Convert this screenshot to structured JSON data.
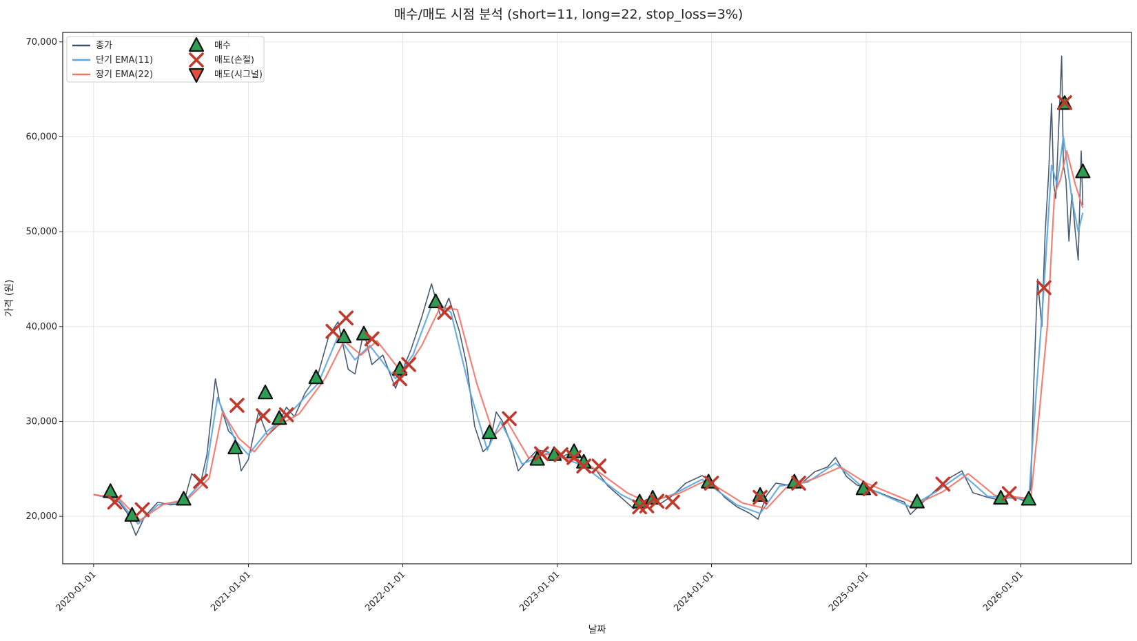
{
  "chart_data": {
    "type": "line",
    "title": "매수/매도 시점 분석 (short=11, long=22, stop_loss=3%)",
    "xlabel": "날짜",
    "ylabel": "가격 (원)",
    "xlim": [
      "2019-10-20",
      "2026-09-20"
    ],
    "ylim": [
      15000,
      71000
    ],
    "grid": true,
    "legend_position": "top-left",
    "x_ticks": [
      "2020-01-01",
      "2021-01-01",
      "2022-01-01",
      "2023-01-01",
      "2024-01-01",
      "2025-01-01",
      "2026-01-01"
    ],
    "y_ticks": [
      20000,
      30000,
      40000,
      50000,
      60000,
      70000
    ],
    "y_tick_labels": [
      "20,000",
      "30,000",
      "40,000",
      "50,000",
      "60,000",
      "70,000"
    ],
    "series": [
      {
        "name": "종가",
        "color": "#3d5168",
        "points": [
          [
            "2020-01-01",
            22300
          ],
          [
            "2020-02-01",
            22000
          ],
          [
            "2020-03-01",
            21500
          ],
          [
            "2020-03-20",
            20400
          ],
          [
            "2020-04-10",
            18000
          ],
          [
            "2020-05-01",
            20000
          ],
          [
            "2020-06-01",
            21500
          ],
          [
            "2020-07-01",
            21200
          ],
          [
            "2020-08-01",
            21400
          ],
          [
            "2020-08-20",
            24500
          ],
          [
            "2020-09-10",
            23500
          ],
          [
            "2020-09-25",
            26500
          ],
          [
            "2020-10-15",
            34500
          ],
          [
            "2020-10-25",
            32000
          ],
          [
            "2020-11-15",
            29000
          ],
          [
            "2020-12-01",
            28300
          ],
          [
            "2020-12-15",
            24800
          ],
          [
            "2021-01-01",
            26000
          ],
          [
            "2021-01-25",
            31000
          ],
          [
            "2021-02-15",
            28500
          ],
          [
            "2021-03-10",
            29500
          ],
          [
            "2021-04-01",
            31500
          ],
          [
            "2021-04-20",
            30500
          ],
          [
            "2021-05-15",
            33000
          ],
          [
            "2021-06-15",
            35000
          ],
          [
            "2021-07-10",
            39000
          ],
          [
            "2021-08-01",
            40500
          ],
          [
            "2021-08-25",
            35500
          ],
          [
            "2021-09-10",
            35000
          ],
          [
            "2021-10-01",
            39500
          ],
          [
            "2021-10-20",
            36000
          ],
          [
            "2021-11-15",
            37000
          ],
          [
            "2021-12-15",
            33500
          ],
          [
            "2022-01-01",
            35500
          ],
          [
            "2022-01-20",
            37500
          ],
          [
            "2022-02-15",
            41000
          ],
          [
            "2022-03-10",
            44500
          ],
          [
            "2022-04-01",
            41000
          ],
          [
            "2022-04-20",
            43000
          ],
          [
            "2022-05-15",
            39500
          ],
          [
            "2022-06-01",
            36000
          ],
          [
            "2022-06-20",
            29500
          ],
          [
            "2022-07-10",
            26800
          ],
          [
            "2022-07-25",
            27500
          ],
          [
            "2022-08-10",
            31000
          ],
          [
            "2022-08-25",
            30000
          ],
          [
            "2022-09-15",
            27500
          ],
          [
            "2022-10-01",
            24800
          ],
          [
            "2022-10-20",
            25800
          ],
          [
            "2022-11-15",
            27000
          ],
          [
            "2022-12-10",
            26800
          ],
          [
            "2023-01-01",
            26000
          ],
          [
            "2023-02-01",
            26700
          ],
          [
            "2023-03-01",
            25200
          ],
          [
            "2023-04-01",
            25000
          ],
          [
            "2023-05-01",
            23200
          ],
          [
            "2023-06-01",
            22000
          ],
          [
            "2023-07-01",
            20800
          ],
          [
            "2023-08-01",
            21800
          ],
          [
            "2023-09-01",
            21300
          ],
          [
            "2023-10-01",
            22200
          ],
          [
            "2023-11-01",
            23500
          ],
          [
            "2023-12-10",
            24300
          ],
          [
            "2024-01-01",
            23600
          ],
          [
            "2024-02-01",
            22000
          ],
          [
            "2024-03-01",
            21000
          ],
          [
            "2024-04-01",
            20300
          ],
          [
            "2024-04-20",
            19700
          ],
          [
            "2024-05-10",
            22200
          ],
          [
            "2024-06-01",
            23500
          ],
          [
            "2024-07-01",
            23300
          ],
          [
            "2024-08-01",
            23500
          ],
          [
            "2024-09-01",
            24700
          ],
          [
            "2024-10-01",
            25200
          ],
          [
            "2024-10-20",
            26200
          ],
          [
            "2024-11-15",
            24200
          ],
          [
            "2024-12-10",
            23300
          ],
          [
            "2025-01-01",
            23000
          ],
          [
            "2025-02-01",
            22500
          ],
          [
            "2025-03-01",
            22000
          ],
          [
            "2025-04-01",
            21500
          ],
          [
            "2025-04-15",
            20200
          ],
          [
            "2025-05-15",
            21500
          ],
          [
            "2025-06-15",
            22800
          ],
          [
            "2025-07-15",
            24000
          ],
          [
            "2025-08-15",
            24800
          ],
          [
            "2025-09-10",
            22500
          ],
          [
            "2025-10-15",
            22000
          ],
          [
            "2025-11-15",
            21700
          ],
          [
            "2025-12-15",
            22100
          ],
          [
            "2026-01-15",
            21500
          ],
          [
            "2026-01-25",
            23000
          ],
          [
            "2026-02-01",
            34000
          ],
          [
            "2026-02-10",
            45000
          ],
          [
            "2026-02-20",
            40000
          ],
          [
            "2026-02-28",
            50000
          ],
          [
            "2026-03-08",
            56000
          ],
          [
            "2026-03-15",
            63500
          ],
          [
            "2026-03-20",
            55000
          ],
          [
            "2026-03-25",
            53500
          ],
          [
            "2026-04-01",
            61000
          ],
          [
            "2026-04-08",
            68500
          ],
          [
            "2026-04-12",
            57000
          ],
          [
            "2026-04-18",
            55500
          ],
          [
            "2026-04-25",
            49000
          ],
          [
            "2026-05-02",
            54000
          ],
          [
            "2026-05-10",
            50000
          ],
          [
            "2026-05-17",
            47000
          ],
          [
            "2026-05-24",
            58500
          ],
          [
            "2026-05-28",
            52800
          ]
        ]
      },
      {
        "name": "단기 EMA(11)",
        "color": "#5da5dc",
        "points": [
          [
            "2020-01-01",
            22300
          ],
          [
            "2020-03-01",
            21700
          ],
          [
            "2020-04-15",
            19200
          ],
          [
            "2020-06-01",
            21200
          ],
          [
            "2020-08-01",
            21500
          ],
          [
            "2020-09-20",
            24000
          ],
          [
            "2020-10-20",
            32500
          ],
          [
            "2020-12-01",
            28000
          ],
          [
            "2021-01-01",
            26500
          ],
          [
            "2021-02-15",
            29000
          ],
          [
            "2021-04-01",
            30500
          ],
          [
            "2021-06-15",
            34000
          ],
          [
            "2021-08-01",
            39000
          ],
          [
            "2021-09-10",
            36500
          ],
          [
            "2021-10-15",
            38000
          ],
          [
            "2021-12-15",
            34500
          ],
          [
            "2022-01-25",
            37000
          ],
          [
            "2022-03-15",
            42800
          ],
          [
            "2022-04-25",
            41500
          ],
          [
            "2022-06-10",
            33000
          ],
          [
            "2022-07-20",
            27000
          ],
          [
            "2022-08-20",
            30000
          ],
          [
            "2022-10-10",
            25500
          ],
          [
            "2022-12-10",
            26700
          ],
          [
            "2023-03-01",
            25400
          ],
          [
            "2023-06-01",
            22300
          ],
          [
            "2023-07-20",
            21200
          ],
          [
            "2023-10-01",
            22300
          ],
          [
            "2023-12-10",
            23900
          ],
          [
            "2024-03-01",
            21200
          ],
          [
            "2024-04-25",
            20300
          ],
          [
            "2024-06-10",
            23200
          ],
          [
            "2024-08-15",
            23600
          ],
          [
            "2024-10-20",
            25600
          ],
          [
            "2024-12-15",
            23400
          ],
          [
            "2025-04-15",
            21000
          ],
          [
            "2025-06-15",
            22600
          ],
          [
            "2025-08-15",
            24500
          ],
          [
            "2025-10-15",
            22100
          ],
          [
            "2026-01-20",
            21800
          ],
          [
            "2026-02-05",
            32000
          ],
          [
            "2026-02-25",
            44000
          ],
          [
            "2026-03-15",
            57000
          ],
          [
            "2026-03-28",
            55000
          ],
          [
            "2026-04-12",
            60000
          ],
          [
            "2026-05-02",
            53500
          ],
          [
            "2026-05-17",
            50000
          ],
          [
            "2026-05-28",
            52000
          ]
        ]
      },
      {
        "name": "장기 EMA(22)",
        "color": "#ef7467",
        "points": [
          [
            "2020-01-01",
            22300
          ],
          [
            "2020-03-01",
            21900
          ],
          [
            "2020-04-20",
            19600
          ],
          [
            "2020-06-15",
            21300
          ],
          [
            "2020-08-10",
            21800
          ],
          [
            "2020-09-30",
            24000
          ],
          [
            "2020-11-01",
            31000
          ],
          [
            "2020-12-10",
            28200
          ],
          [
            "2021-01-15",
            26800
          ],
          [
            "2021-03-01",
            29300
          ],
          [
            "2021-05-01",
            30800
          ],
          [
            "2021-07-01",
            34500
          ],
          [
            "2021-08-15",
            38500
          ],
          [
            "2021-09-25",
            37000
          ],
          [
            "2021-11-01",
            38500
          ],
          [
            "2022-01-01",
            35000
          ],
          [
            "2022-02-15",
            38000
          ],
          [
            "2022-03-30",
            42000
          ],
          [
            "2022-05-10",
            41800
          ],
          [
            "2022-06-25",
            34000
          ],
          [
            "2022-08-05",
            28500
          ],
          [
            "2022-09-05",
            30000
          ],
          [
            "2022-10-25",
            26200
          ],
          [
            "2022-12-20",
            26600
          ],
          [
            "2023-03-15",
            25500
          ],
          [
            "2023-06-15",
            22500
          ],
          [
            "2023-08-01",
            21500
          ],
          [
            "2023-10-15",
            22400
          ],
          [
            "2023-12-20",
            23800
          ],
          [
            "2024-03-15",
            21400
          ],
          [
            "2024-05-10",
            20800
          ],
          [
            "2024-06-25",
            23000
          ],
          [
            "2024-09-01",
            24000
          ],
          [
            "2024-11-01",
            25200
          ],
          [
            "2025-01-01",
            23500
          ],
          [
            "2025-04-30",
            21300
          ],
          [
            "2025-07-01",
            22600
          ],
          [
            "2025-08-30",
            24500
          ],
          [
            "2025-11-01",
            22200
          ],
          [
            "2026-01-25",
            21900
          ],
          [
            "2026-02-12",
            30000
          ],
          [
            "2026-03-05",
            40000
          ],
          [
            "2026-03-22",
            54000
          ],
          [
            "2026-04-05",
            55500
          ],
          [
            "2026-04-20",
            58500
          ],
          [
            "2026-05-10",
            55000
          ],
          [
            "2026-05-28",
            52500
          ]
        ]
      }
    ],
    "markers": [
      {
        "name": "매수",
        "shape": "triangle-up",
        "color": "#2e9e55",
        "points": [
          [
            "2020-02-10",
            22600
          ],
          [
            "2020-04-01",
            20100
          ],
          [
            "2020-08-01",
            21800
          ],
          [
            "2020-12-01",
            27200
          ],
          [
            "2021-02-10",
            33000
          ],
          [
            "2021-03-15",
            30300
          ],
          [
            "2021-06-10",
            34600
          ],
          [
            "2021-08-15",
            38900
          ],
          [
            "2021-10-01",
            39200
          ],
          [
            "2021-12-25",
            35500
          ],
          [
            "2022-03-20",
            42600
          ],
          [
            "2022-07-25",
            28800
          ],
          [
            "2022-11-15",
            26000
          ],
          [
            "2022-12-25",
            26500
          ],
          [
            "2023-02-10",
            26800
          ],
          [
            "2023-03-05",
            25700
          ],
          [
            "2023-07-15",
            21500
          ],
          [
            "2023-08-15",
            21900
          ],
          [
            "2023-12-25",
            23600
          ],
          [
            "2024-04-25",
            22200
          ],
          [
            "2024-07-15",
            23600
          ],
          [
            "2024-12-25",
            22900
          ],
          [
            "2025-05-01",
            21500
          ],
          [
            "2025-11-15",
            21900
          ],
          [
            "2026-01-20",
            21800
          ],
          [
            "2026-04-15",
            63500
          ],
          [
            "2026-05-28",
            56300
          ]
        ]
      },
      {
        "name": "매도(손절)",
        "shape": "x",
        "color": "#c0392b",
        "points": [
          [
            "2020-02-20",
            21500
          ],
          [
            "2020-04-25",
            20700
          ],
          [
            "2020-09-10",
            23700
          ],
          [
            "2020-12-05",
            31700
          ],
          [
            "2021-02-05",
            30600
          ],
          [
            "2021-04-01",
            30700
          ],
          [
            "2021-07-20",
            39500
          ],
          [
            "2021-08-20",
            40900
          ],
          [
            "2021-10-20",
            38700
          ],
          [
            "2021-12-25",
            34500
          ],
          [
            "2022-01-15",
            36000
          ],
          [
            "2022-04-10",
            41500
          ],
          [
            "2022-09-10",
            30300
          ],
          [
            "2022-11-25",
            26600
          ],
          [
            "2023-01-10",
            26500
          ],
          [
            "2023-02-10",
            26200
          ],
          [
            "2023-03-05",
            25300
          ],
          [
            "2023-04-10",
            25300
          ],
          [
            "2023-07-15",
            21000
          ],
          [
            "2023-08-01",
            21100
          ],
          [
            "2023-08-25",
            21600
          ],
          [
            "2023-10-01",
            21500
          ],
          [
            "2024-01-01",
            23500
          ],
          [
            "2024-04-25",
            22000
          ],
          [
            "2024-07-25",
            23500
          ],
          [
            "2025-01-10",
            22900
          ],
          [
            "2025-07-01",
            23400
          ],
          [
            "2025-12-05",
            22400
          ],
          [
            "2026-02-25",
            44100
          ],
          [
            "2026-04-15",
            63600
          ]
        ]
      },
      {
        "name": "매도(시그널)",
        "shape": "triangle-down",
        "color": "#e74c3c",
        "points": []
      }
    ]
  }
}
